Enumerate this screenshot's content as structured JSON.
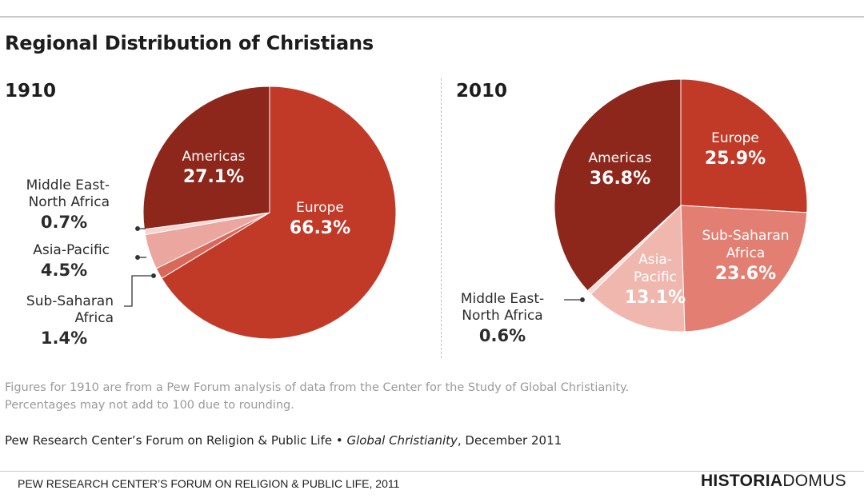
{
  "title": "Regional Distribution of Christians",
  "note_lines": [
    "Figures for 1910 are from a Pew Forum analysis of data from the Center for the Study of Global Christianity.",
    "Percentages may not add to 100 due to rounding."
  ],
  "source": {
    "org": "Pew Research Center’s Forum on Religion & Public Life • ",
    "report": "Global Christianity",
    "date": ", December 2011"
  },
  "footer": "PEW RESEARCH CENTER’S FORUM ON RELIGION & PUBLIC LIFE, 2011",
  "logo": {
    "bold": "HISTORIA",
    "light": "DOMUS"
  },
  "chart_data": [
    {
      "type": "pie",
      "title": "1910",
      "slices": [
        {
          "label": "Europe",
          "value": 66.3,
          "display": "66.3%",
          "color": "#c13a28"
        },
        {
          "label": "Sub-Saharan Africa",
          "value": 1.4,
          "display": "1.4%",
          "color": "#d9675a"
        },
        {
          "label": "Asia-Pacific",
          "value": 4.5,
          "display": "4.5%",
          "color": "#eba79f"
        },
        {
          "label": "Middle East-North Africa",
          "value": 0.7,
          "display": "0.7%",
          "color": "#f6d4cf"
        },
        {
          "label": "Americas",
          "value": 27.1,
          "display": "27.1%",
          "color": "#8e271b"
        }
      ]
    },
    {
      "type": "pie",
      "title": "2010",
      "slices": [
        {
          "label": "Europe",
          "value": 25.9,
          "display": "25.9%",
          "color": "#c13a28"
        },
        {
          "label": "Sub-Saharan Africa",
          "value": 23.6,
          "display": "23.6%",
          "color": "#e27f72"
        },
        {
          "label": "Asia-Pacific",
          "value": 13.1,
          "display": "13.1%",
          "color": "#f0b7af"
        },
        {
          "label": "Middle East-North Africa",
          "value": 0.6,
          "display": "0.6%",
          "color": "#f8dcd8"
        },
        {
          "label": "Americas",
          "value": 36.8,
          "display": "36.8%",
          "color": "#8e271b"
        }
      ]
    }
  ],
  "labels": {
    "p1910": {
      "americas": "Americas",
      "europe": "Europe",
      "mena_l1": "Middle East-",
      "mena_l2": "North Africa",
      "asia": "Asia-Pacific",
      "ssa_l1": "Sub-Saharan",
      "ssa_l2": "Africa"
    },
    "p2010": {
      "americas": "Americas",
      "europe": "Europe",
      "ssa_l1": "Sub-Saharan",
      "ssa_l2": "Africa",
      "asia_l1": "Asia-",
      "asia_l2": "Pacific",
      "mena_l1": "Middle East-",
      "mena_l2": "North Africa"
    }
  }
}
